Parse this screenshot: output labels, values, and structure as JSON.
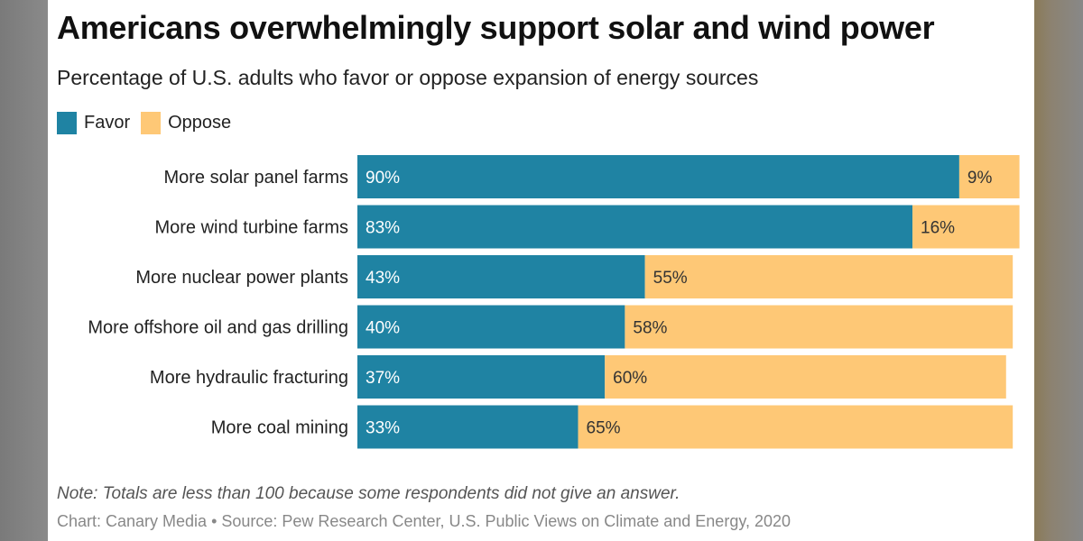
{
  "chart_data": {
    "type": "bar",
    "orientation": "horizontal-stacked",
    "title": "Americans overwhelmingly support solar and wind power",
    "subtitle": "Percentage of U.S. adults who favor or oppose expansion of energy sources",
    "categories": [
      "More solar panel farms",
      "More wind turbine farms",
      "More nuclear power plants",
      "More offshore oil and gas drilling",
      "More hydraulic fracturing",
      "More coal mining"
    ],
    "series": [
      {
        "name": "Favor",
        "color": "#1f83a3",
        "values": [
          90,
          83,
          43,
          40,
          37,
          33
        ]
      },
      {
        "name": "Oppose",
        "color": "#fec876",
        "values": [
          9,
          16,
          55,
          58,
          60,
          65
        ]
      }
    ],
    "value_suffix": "%",
    "xlim": [
      0,
      100
    ],
    "grid": false,
    "legend_position": "top-left",
    "note": "Note: Totals are less than 100 because some respondents did not give an answer.",
    "source": "Chart: Canary Media • Source: Pew Research Center, U.S. Public Views on Climate and Energy, 2020"
  }
}
